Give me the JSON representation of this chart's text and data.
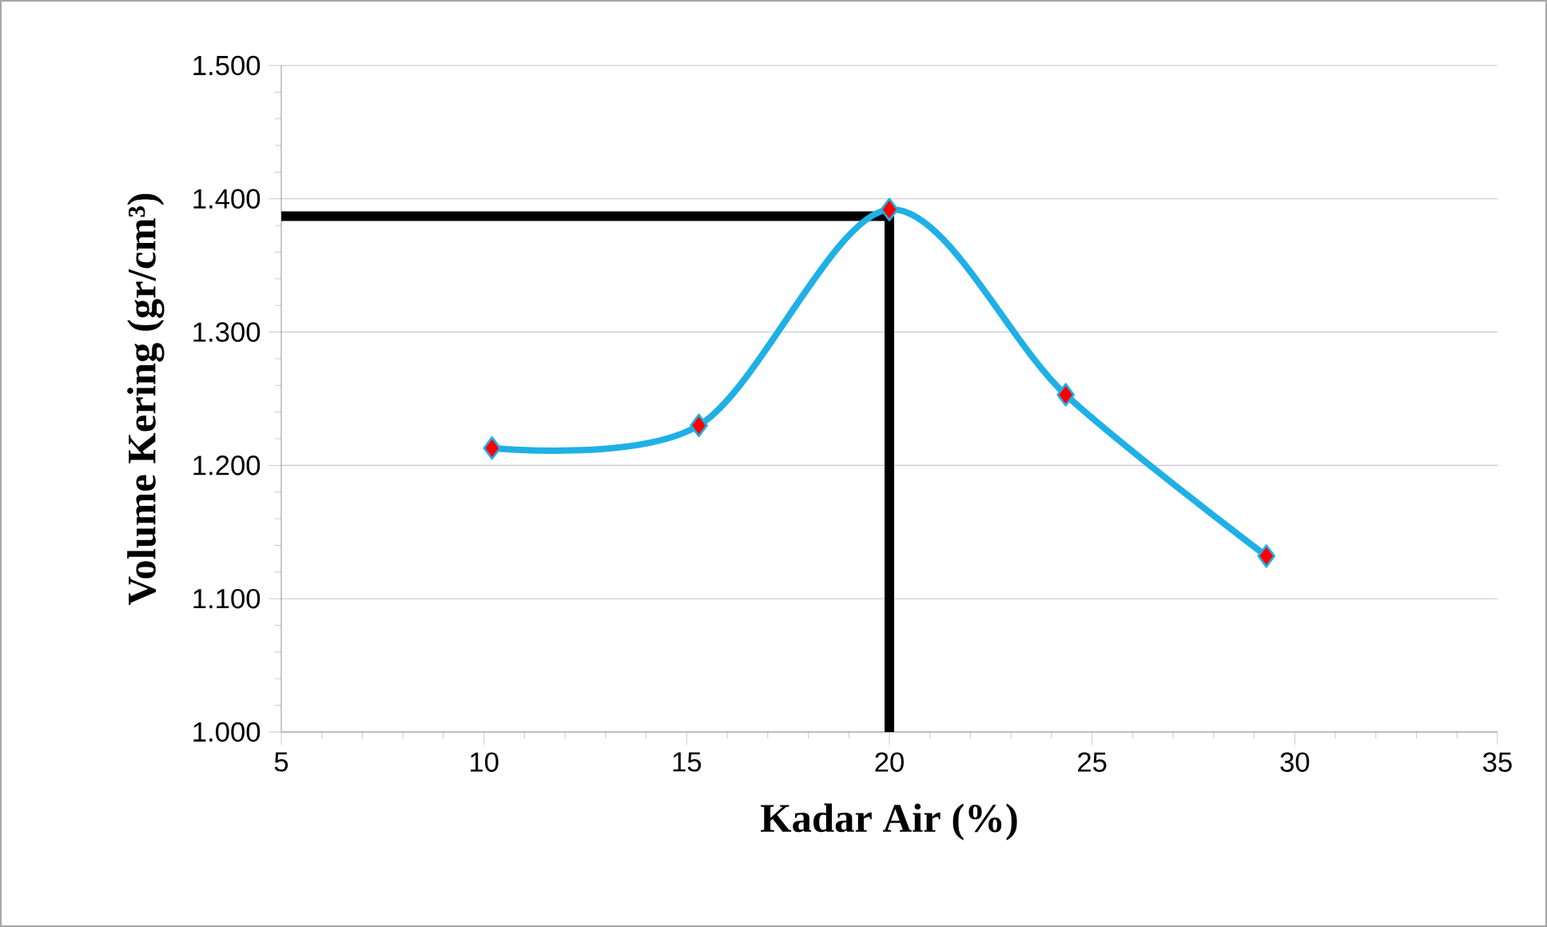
{
  "chart_data": {
    "type": "line",
    "xlabel": "Kadar Air (%)",
    "ylabel": "Volume Kering (gr/cm³)",
    "x": [
      10.2,
      15.3,
      20.0,
      24.35,
      29.3
    ],
    "series": [
      {
        "color": "#1fb0e6",
        "values": [
          1.213,
          1.23,
          1.392,
          1.253,
          1.132
        ]
      }
    ],
    "xlim": [
      5,
      35
    ],
    "xticks": [
      5,
      10,
      15,
      20,
      25,
      30,
      35
    ],
    "ylim": [
      1.0,
      1.5
    ],
    "yticks": [
      {
        "value": 1.0,
        "label": "1.000"
      },
      {
        "value": 1.1,
        "label": "1.100"
      },
      {
        "value": 1.2,
        "label": "1.200"
      },
      {
        "value": 1.3,
        "label": "1.300"
      },
      {
        "value": 1.4,
        "label": "1.400"
      },
      {
        "value": 1.5,
        "label": "1.500"
      }
    ],
    "ref_lines": [
      {
        "axis": "y",
        "value": 1.387,
        "color": "#000000"
      },
      {
        "axis": "x",
        "value": 20.0,
        "color": "#000000"
      }
    ],
    "grid": "y",
    "marker": "diamond",
    "line_style": "solid"
  }
}
